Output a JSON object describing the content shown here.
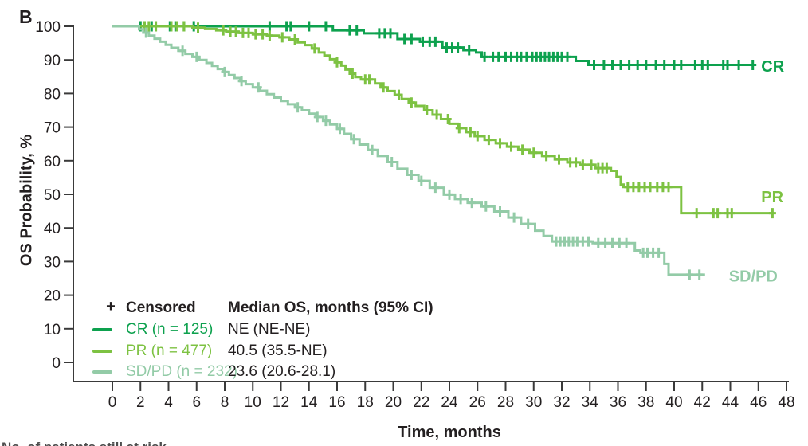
{
  "panel_label": "B",
  "footnote_clipped": "No. of patients still at risk",
  "colors": {
    "cr": "#0DA14E",
    "pr": "#7DC242",
    "sdpd": "#93CBA7",
    "axis": "#3a3a3a",
    "text": "#231F20"
  },
  "legend": {
    "censored_symbol": "+",
    "censored_label": "Censored",
    "value_header": "Median OS, months (95% CI)",
    "rows": [
      {
        "swatch": "cr",
        "label": "CR (n = 125)",
        "value": "NE (NE-NE)"
      },
      {
        "swatch": "pr",
        "label": "PR (n = 477)",
        "value": "40.5 (35.5-NE)"
      },
      {
        "swatch": "sdpd",
        "label": "SD/PD (n = 232)",
        "value": "23.6 (20.6-28.1)"
      }
    ]
  },
  "chart_data": {
    "type": "line",
    "subtype": "kaplan-meier-step",
    "title": "",
    "xlabel": "Time, months",
    "ylabel": "OS Probability, %",
    "xlim": [
      0,
      48
    ],
    "xtick_step": 2,
    "ylim": [
      0,
      100
    ],
    "ytick_step": 10,
    "grid": false,
    "legend_position": "inside-lower-left",
    "series": [
      {
        "name": "CR",
        "label": "CR",
        "n": 125,
        "median_os": "NE (NE-NE)",
        "color_key": "cr",
        "end_time": 45.6,
        "label_pos": [
          46.2,
          88.2
        ],
        "steps": [
          [
            0,
            100
          ],
          [
            15.7,
            98.8
          ],
          [
            17.9,
            97.9
          ],
          [
            20.3,
            96.2
          ],
          [
            21.9,
            95.4
          ],
          [
            23.5,
            93.7
          ],
          [
            25.0,
            92.9
          ],
          [
            25.9,
            92.2
          ],
          [
            26.3,
            90.9
          ],
          [
            33.0,
            89.7
          ],
          [
            33.9,
            88.5
          ]
        ],
        "censors": [
          2.0,
          2.8,
          4.1,
          4.5,
          5.1,
          5.8,
          11.2,
          12.4,
          12.7,
          14.0,
          15.2,
          16.9,
          17.4,
          19.0,
          19.4,
          19.8,
          20.8,
          21.3,
          22.1,
          22.6,
          23.0,
          23.8,
          24.2,
          24.6,
          25.4,
          26.5,
          27.1,
          27.5,
          28.0,
          28.4,
          28.8,
          29.1,
          29.5,
          29.9,
          30.2,
          30.5,
          30.8,
          31.1,
          31.4,
          31.7,
          32.0,
          32.4,
          34.3,
          35.0,
          35.6,
          36.2,
          36.8,
          37.4,
          38.0,
          38.7,
          39.3,
          40.0,
          40.5,
          41.5,
          42.0,
          42.4,
          43.5,
          43.8,
          44.6,
          45.6
        ]
      },
      {
        "name": "PR",
        "label": "PR",
        "n": 477,
        "median_os": "40.5 (35.5-NE)",
        "color_key": "pr",
        "end_time": 47.0,
        "label_pos": [
          46.2,
          49.3
        ],
        "steps": [
          [
            0,
            100
          ],
          [
            5.7,
            99.6
          ],
          [
            6.6,
            99.2
          ],
          [
            7.4,
            98.8
          ],
          [
            8.1,
            98.4
          ],
          [
            9.0,
            98.0
          ],
          [
            10.0,
            97.6
          ],
          [
            11.0,
            97.2
          ],
          [
            11.9,
            96.7
          ],
          [
            12.6,
            96.1
          ],
          [
            13.2,
            95.2
          ],
          [
            13.7,
            94.4
          ],
          [
            14.2,
            93.4
          ],
          [
            14.7,
            92.2
          ],
          [
            15.1,
            91.3
          ],
          [
            15.5,
            90.2
          ],
          [
            15.9,
            89.3
          ],
          [
            16.3,
            88.3
          ],
          [
            16.6,
            87.1
          ],
          [
            16.9,
            85.9
          ],
          [
            17.3,
            84.9
          ],
          [
            17.7,
            84.2
          ],
          [
            18.7,
            83.0
          ],
          [
            19.1,
            81.8
          ],
          [
            19.6,
            80.7
          ],
          [
            20.1,
            79.6
          ],
          [
            20.6,
            78.4
          ],
          [
            21.1,
            77.3
          ],
          [
            21.6,
            76.3
          ],
          [
            22.2,
            75.0
          ],
          [
            22.8,
            73.7
          ],
          [
            23.4,
            72.4
          ],
          [
            24.0,
            71.0
          ],
          [
            24.6,
            69.7
          ],
          [
            25.2,
            68.5
          ],
          [
            25.8,
            67.3
          ],
          [
            26.5,
            66.2
          ],
          [
            27.3,
            65.2
          ],
          [
            28.1,
            64.2
          ],
          [
            28.9,
            63.3
          ],
          [
            29.7,
            62.4
          ],
          [
            30.6,
            61.4
          ],
          [
            31.5,
            60.4
          ],
          [
            32.4,
            59.5
          ],
          [
            33.3,
            58.8
          ],
          [
            34.4,
            57.8
          ],
          [
            35.5,
            57.0
          ],
          [
            35.9,
            55.2
          ],
          [
            36.2,
            52.9
          ],
          [
            36.4,
            52.2
          ],
          [
            40.5,
            44.4
          ]
        ],
        "censors": [
          2.3,
          2.6,
          3.1,
          4.2,
          4.6,
          5.1,
          6.1,
          7.9,
          8.4,
          8.8,
          9.3,
          9.7,
          10.2,
          10.7,
          11.2,
          12.1,
          13.0,
          14.4,
          16.0,
          17.1,
          18.0,
          18.3,
          19.3,
          20.4,
          21.3,
          22.4,
          23.1,
          23.9,
          24.7,
          25.5,
          26.0,
          26.8,
          27.6,
          28.4,
          29.2,
          30.0,
          30.9,
          31.8,
          32.6,
          33.0,
          33.5,
          34.1,
          34.6,
          34.9,
          35.2,
          36.7,
          37.1,
          37.5,
          37.9,
          38.3,
          38.8,
          39.2,
          39.6,
          41.6,
          42.8,
          43.1,
          43.8,
          44.1,
          47.0
        ]
      },
      {
        "name": "SD/PD",
        "label": "SD/PD",
        "n": 232,
        "median_os": "23.6 (20.6-28.1)",
        "color_key": "sdpd",
        "end_time": 42.2,
        "label_pos": [
          43.9,
          25.7
        ],
        "steps": [
          [
            0,
            100
          ],
          [
            1.9,
            99.1
          ],
          [
            2.2,
            98.1
          ],
          [
            2.6,
            97.2
          ],
          [
            3.0,
            96.3
          ],
          [
            3.4,
            95.4
          ],
          [
            3.8,
            94.5
          ],
          [
            4.2,
            93.6
          ],
          [
            4.7,
            92.7
          ],
          [
            5.2,
            91.8
          ],
          [
            5.7,
            90.9
          ],
          [
            6.2,
            90.0
          ],
          [
            6.7,
            89.1
          ],
          [
            7.1,
            88.2
          ],
          [
            7.5,
            87.3
          ],
          [
            7.9,
            86.4
          ],
          [
            8.3,
            85.5
          ],
          [
            8.7,
            84.6
          ],
          [
            9.1,
            83.7
          ],
          [
            9.5,
            82.8
          ],
          [
            10.0,
            81.8
          ],
          [
            10.5,
            80.8
          ],
          [
            11.0,
            79.8
          ],
          [
            11.5,
            78.8
          ],
          [
            12.0,
            77.8
          ],
          [
            12.5,
            76.8
          ],
          [
            13.0,
            75.9
          ],
          [
            13.5,
            75.0
          ],
          [
            14.0,
            74.0
          ],
          [
            14.5,
            73.0
          ],
          [
            15.0,
            71.9
          ],
          [
            15.5,
            70.8
          ],
          [
            16.0,
            69.5
          ],
          [
            16.5,
            68.0
          ],
          [
            17.0,
            66.4
          ],
          [
            17.6,
            64.8
          ],
          [
            18.2,
            63.2
          ],
          [
            18.9,
            61.4
          ],
          [
            19.6,
            59.6
          ],
          [
            20.3,
            57.6
          ],
          [
            21.0,
            55.8
          ],
          [
            21.8,
            54.0
          ],
          [
            22.6,
            52.0
          ],
          [
            23.6,
            49.9
          ],
          [
            24.4,
            48.6
          ],
          [
            25.3,
            47.5
          ],
          [
            26.3,
            46.4
          ],
          [
            27.2,
            44.9
          ],
          [
            28.2,
            43.1
          ],
          [
            29.1,
            41.2
          ],
          [
            30.1,
            39.2
          ],
          [
            30.7,
            37.6
          ],
          [
            31.3,
            36.0
          ],
          [
            34.2,
            35.5
          ],
          [
            37.2,
            33.3
          ],
          [
            37.6,
            32.6
          ],
          [
            39.3,
            29.3
          ],
          [
            39.6,
            26.1
          ]
        ],
        "censors": [
          2.4,
          5.0,
          6.0,
          8.0,
          9.2,
          10.4,
          13.2,
          14.6,
          15.2,
          16.2,
          17.2,
          18.5,
          19.9,
          21.3,
          22.0,
          23.0,
          24.0,
          24.8,
          25.6,
          26.6,
          27.6,
          28.6,
          29.6,
          31.6,
          31.9,
          32.2,
          32.5,
          32.8,
          33.1,
          33.5,
          33.9,
          34.6,
          35.1,
          35.6,
          36.1,
          36.6,
          37.8,
          38.1,
          38.5,
          38.9,
          41.1,
          41.8
        ]
      }
    ]
  }
}
